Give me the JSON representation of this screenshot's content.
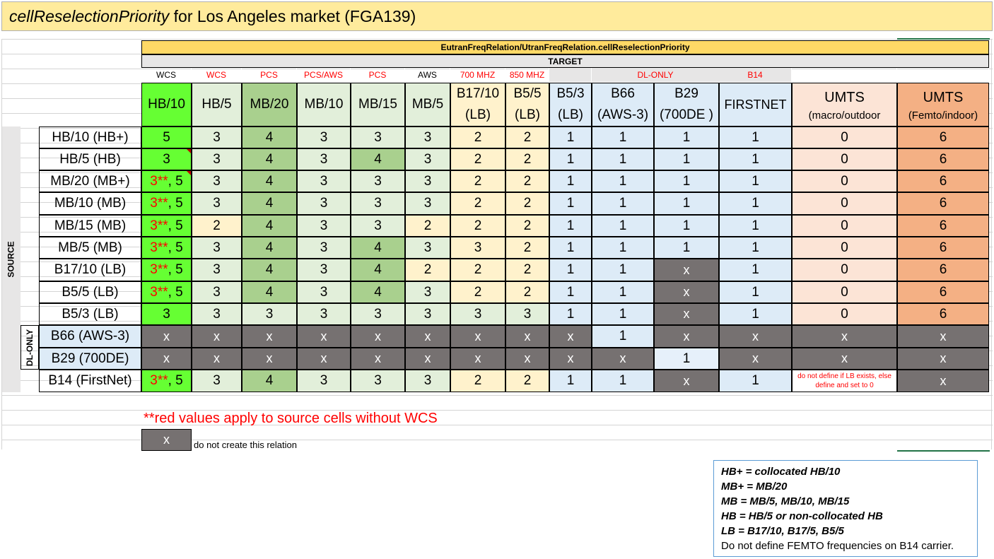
{
  "title": {
    "italic": "cellReselectionPriority",
    "rest": " for Los Angeles market (FGA139)"
  },
  "header": {
    "relation": "EutranFreqRelation/UtranFreqRelation.cellReselectionPriority",
    "target": "TARGET",
    "dl_only": "DL-ONLY",
    "source": "SOURCE",
    "source_dl_only": "DL-ONLY"
  },
  "bands": [
    "WCS",
    "WCS",
    "PCS",
    "PCS/AWS",
    "PCS",
    "AWS",
    "700 MHZ",
    "850 MHZ",
    "",
    "",
    "",
    "B14",
    "",
    ""
  ],
  "columns": [
    {
      "l1": "HB/10",
      "l2": ""
    },
    {
      "l1": "HB/5",
      "l2": ""
    },
    {
      "l1": "MB/20",
      "l2": ""
    },
    {
      "l1": "MB/10",
      "l2": ""
    },
    {
      "l1": "MB/15",
      "l2": ""
    },
    {
      "l1": "MB/5",
      "l2": ""
    },
    {
      "l1": "B17/10",
      "l2": "(LB)"
    },
    {
      "l1": "B5/5",
      "l2": "(LB)"
    },
    {
      "l1": "B5/3",
      "l2": "(LB)"
    },
    {
      "l1": "B66",
      "l2": "(AWS-3)"
    },
    {
      "l1": "B29",
      "l2": "(700DE )"
    },
    {
      "l1": "FIRSTNET",
      "l2": ""
    },
    {
      "l1": "UMTS",
      "l2": "(macro/outdoor"
    },
    {
      "l1": "UMTS",
      "l2": "(Femto/indoor)"
    }
  ],
  "rows": [
    {
      "source": "HB/10 (HB+)",
      "cells": [
        "5",
        "3",
        "4",
        "3",
        "3",
        "3",
        "2",
        "2",
        "1",
        "1",
        "1",
        "1",
        "0",
        "6"
      ]
    },
    {
      "source": "HB/5 (HB)",
      "cells": [
        "3",
        "3",
        "4",
        "3",
        "4",
        "3",
        "2",
        "2",
        "1",
        "1",
        "1",
        "1",
        "0",
        "6"
      ]
    },
    {
      "source": "MB/20 (MB+)",
      "cells": [
        "3**, 5",
        "3",
        "4",
        "3",
        "3",
        "3",
        "2",
        "2",
        "1",
        "1",
        "1",
        "1",
        "0",
        "6"
      ]
    },
    {
      "source": "MB/10 (MB)",
      "cells": [
        "3**, 5",
        "3",
        "4",
        "3",
        "3",
        "3",
        "2",
        "2",
        "1",
        "1",
        "1",
        "1",
        "0",
        "6"
      ]
    },
    {
      "source": "MB/15 (MB)",
      "cells": [
        "3**, 5",
        "2",
        "4",
        "3",
        "3",
        "2",
        "2",
        "2",
        "1",
        "1",
        "1",
        "1",
        "0",
        "6"
      ]
    },
    {
      "source": "MB/5 (MB)",
      "cells": [
        "3**, 5",
        "3",
        "4",
        "3",
        "4",
        "3",
        "3",
        "2",
        "1",
        "1",
        "1",
        "1",
        "0",
        "6"
      ]
    },
    {
      "source": "B17/10 (LB)",
      "cells": [
        "3**, 5",
        "3",
        "4",
        "3",
        "4",
        "2",
        "2",
        "2",
        "1",
        "1",
        "x",
        "1",
        "0",
        "6"
      ]
    },
    {
      "source": "B5/5 (LB)",
      "cells": [
        "3**, 5",
        "3",
        "4",
        "3",
        "4",
        "3",
        "2",
        "2",
        "1",
        "1",
        "x",
        "1",
        "0",
        "6"
      ]
    },
    {
      "source": "B5/3 (LB)",
      "cells": [
        "3",
        "3",
        "3",
        "3",
        "3",
        "3",
        "3",
        "3",
        "1",
        "1",
        "x",
        "1",
        "0",
        "6"
      ]
    },
    {
      "source": "B66 (AWS-3)",
      "cells": [
        "x",
        "x",
        "x",
        "x",
        "x",
        "x",
        "x",
        "x",
        "x",
        "1",
        "x",
        "x",
        "x",
        "x"
      ]
    },
    {
      "source": "B29 (700DE)",
      "cells": [
        "x",
        "x",
        "x",
        "x",
        "x",
        "x",
        "x",
        "x",
        "x",
        "x",
        "1",
        "x",
        "x",
        "x"
      ]
    },
    {
      "source": "B14 (FirstNet)",
      "cells": [
        "3**, 5",
        "3",
        "4",
        "3",
        "3",
        "3",
        "2",
        "2",
        "1",
        "1",
        "x",
        "1",
        "do not define if LB exists, else define and set to 0",
        "x"
      ]
    }
  ],
  "red_part": "3**",
  "footnote": "**red values apply to source cells without WCS",
  "x_legend": {
    "symbol": "x",
    "text": "do not create this relation"
  },
  "legend": [
    "HB+ = collocated HB/10",
    "MB+ = MB/20",
    "MB = MB/5, MB/10, MB/15",
    "HB = HB/5 or non-collocated HB",
    "LB = B17/10, B17/5, B5/5",
    "Do not define FEMTO frequencies on B14 carrier."
  ],
  "colors": {
    "hb10": "#66ff33",
    "light_green": "#e2efda",
    "mid_green": "#a9d08e",
    "light_yellow": "#fff2cc",
    "light_blue": "#ddebf7",
    "pink": "#fce4d6",
    "orange": "#f4b084",
    "grey": "#767171",
    "header_yellow": "#ffd966"
  }
}
